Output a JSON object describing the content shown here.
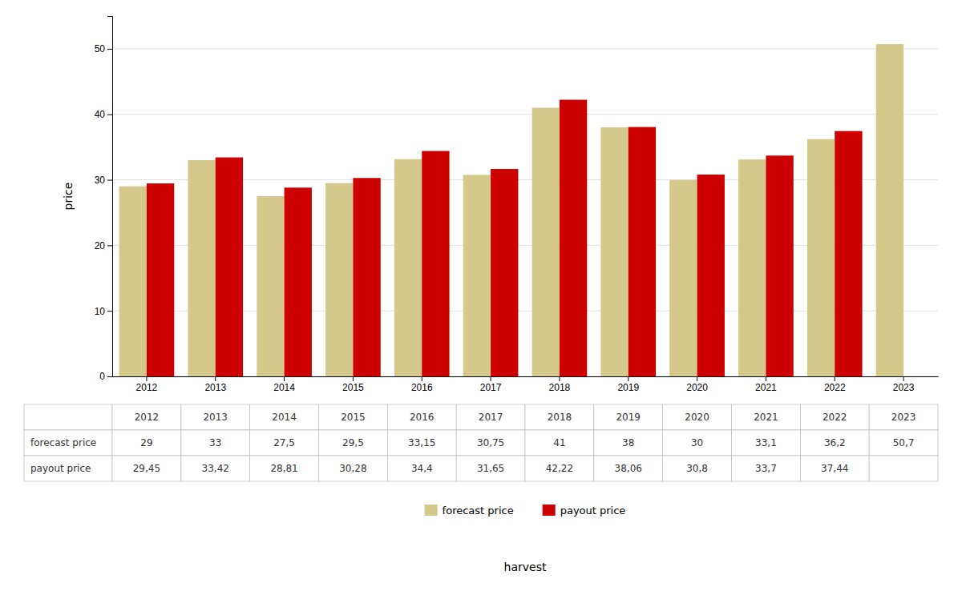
{
  "chart_data": {
    "type": "bar",
    "xlabel": "harvest",
    "ylabel": "price",
    "categories": [
      "2012",
      "2013",
      "2014",
      "2015",
      "2016",
      "2017",
      "2018",
      "2019",
      "2020",
      "2021",
      "2022",
      "2023"
    ],
    "series": [
      {
        "name": "forecast price",
        "color": "#D4C88A",
        "values": [
          29,
          33,
          27.5,
          29.5,
          33.15,
          30.75,
          41,
          38,
          30,
          33.1,
          36.2,
          50.7
        ],
        "value_labels": [
          "29",
          "33",
          "27,5",
          "29,5",
          "33,15",
          "30,75",
          "41",
          "38",
          "30",
          "33,1",
          "36,2",
          "50,7"
        ]
      },
      {
        "name": "payout price",
        "color": "#CC0000",
        "values": [
          29.45,
          33.42,
          28.81,
          30.28,
          34.4,
          31.65,
          42.22,
          38.06,
          30.8,
          33.7,
          37.44,
          null
        ],
        "value_labels": [
          "29,45",
          "33,42",
          "28,81",
          "30,28",
          "34,4",
          "31,65",
          "42,22",
          "38,06",
          "30,8",
          "33,7",
          "37,44",
          null
        ]
      }
    ],
    "ylim": [
      0,
      55
    ],
    "yticks": [
      0,
      10,
      20,
      30,
      40,
      50
    ],
    "grid": true,
    "legend": "bottom"
  }
}
